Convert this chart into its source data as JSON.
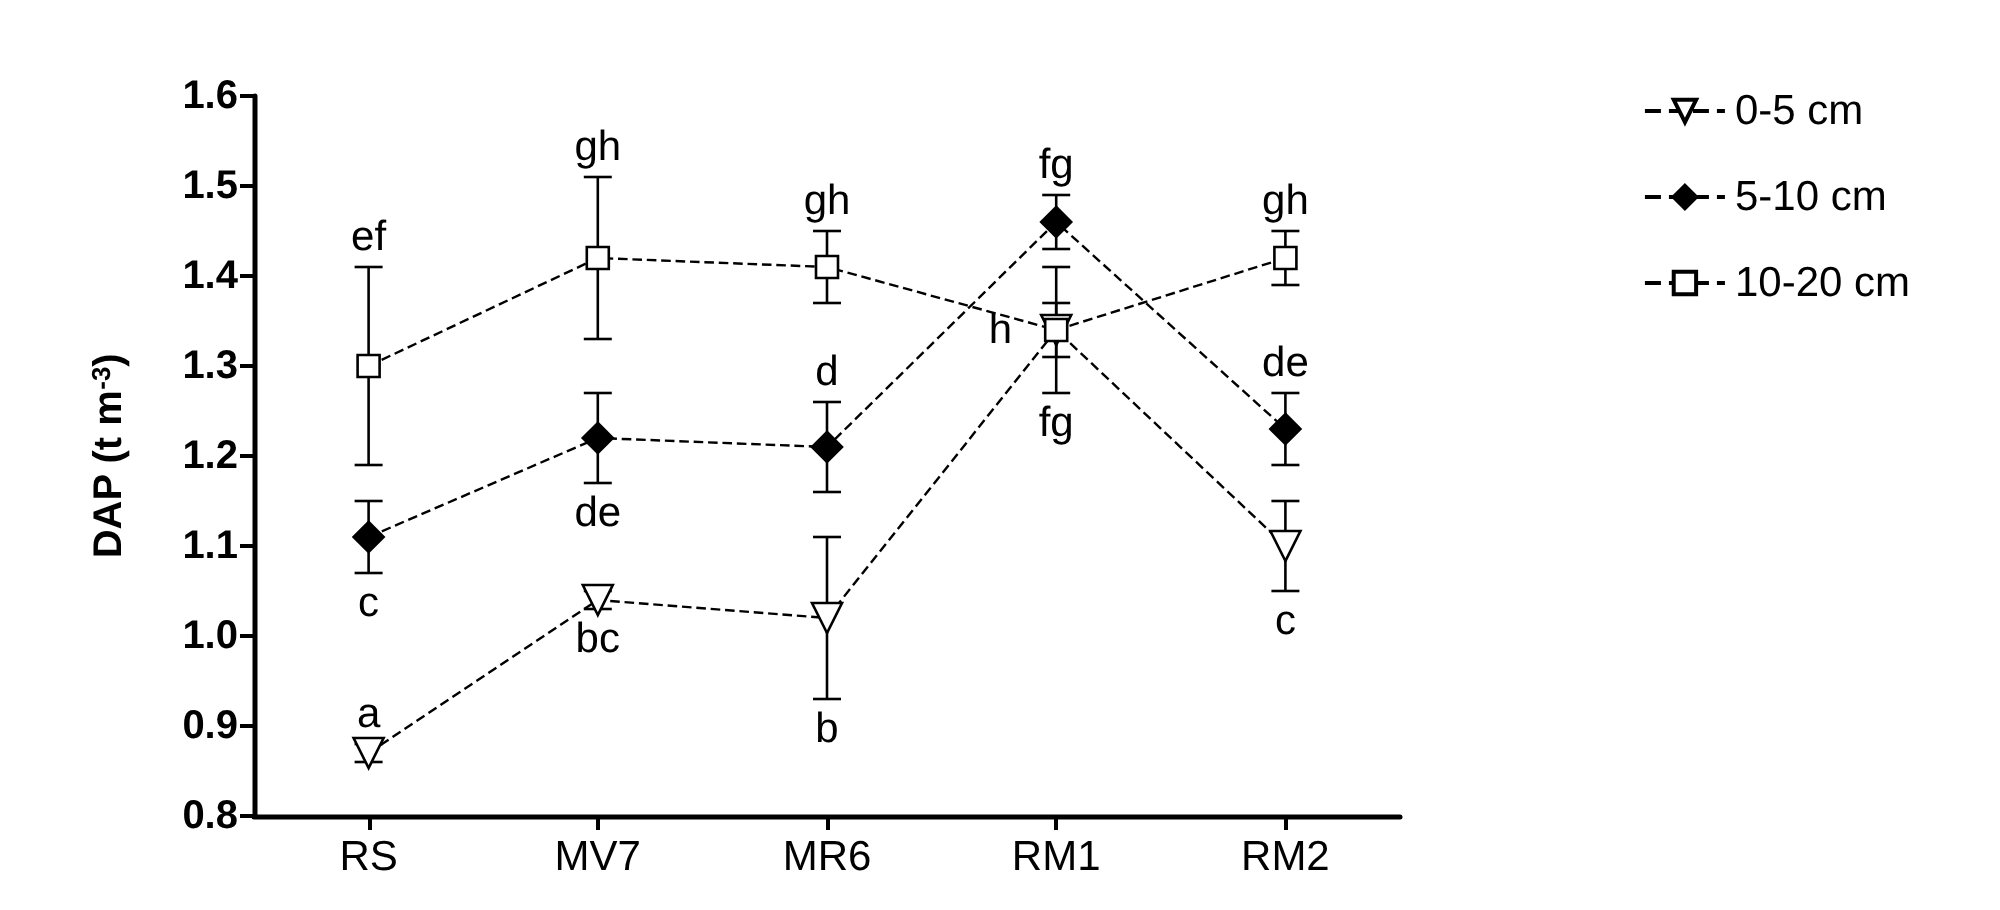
{
  "chart_data": {
    "type": "line",
    "ylabel": "DAP (t m$^{-3}$)",
    "categories": [
      "RS",
      "MV7",
      "MR6",
      "RM1",
      "RM2"
    ],
    "series": [
      {
        "name": "0-5 cm",
        "color": "#000000",
        "marker": "triangle",
        "values": [
          0.87,
          1.04,
          1.02,
          1.34,
          1.1
        ],
        "errors": [
          0.01,
          0.01,
          0.09,
          0.07,
          0.05
        ]
      },
      {
        "name": "5-10 cm",
        "color": "#000000",
        "marker": "diamond",
        "values": [
          1.11,
          1.22,
          1.21,
          1.46,
          1.23
        ],
        "errors": [
          0.04,
          0.05,
          0.05,
          0.03,
          0.04
        ]
      },
      {
        "name": "10-20 cm",
        "color": "#000000",
        "marker": "square",
        "values": [
          1.3,
          1.42,
          1.41,
          1.34,
          1.42
        ],
        "errors": [
          0.11,
          0.09,
          0.04,
          0.03,
          0.03
        ]
      }
    ],
    "ylim": [
      0.8,
      1.6
    ],
    "yticks": [
      0.8,
      0.9,
      {
        "value": 1,
        "label": "1.0"
      },
      1.1,
      1.2,
      1.3,
      1.4,
      1.5,
      1.6
    ],
    "line_style": "dashed",
    "grid": false,
    "legend": "right",
    "annotations": [
      {
        "text": "a",
        "x": "RS",
        "y": 0.88
      },
      {
        "text": "bc",
        "x": "MV7",
        "y": 1.03
      },
      {
        "text": "b",
        "x": "MR6",
        "y": 0.93
      },
      {
        "text": "fg",
        "x": "RM1",
        "y": 1.27
      },
      {
        "text": "c",
        "x": "RM2",
        "y": 1.05
      },
      {
        "text": "c",
        "x": "RS",
        "y": 1.07
      },
      {
        "text": "de",
        "x": "MV7",
        "y": 1.17
      },
      {
        "text": "d",
        "x": "MR6",
        "y": 1.26
      },
      {
        "text": "fg",
        "x": "RM1",
        "y": 1.49
      },
      {
        "text": "de",
        "x": "RM2",
        "y": 1.27
      },
      {
        "text": "ef",
        "x": "RS",
        "y": 1.41
      },
      {
        "text": "gh",
        "x": "MV7",
        "y": 1.51
      },
      {
        "text": "gh",
        "x": "MR6",
        "y": 1.45
      },
      {
        "text": "h",
        "x": "RM1",
        "y": 1.34
      },
      {
        "text": "gh",
        "x": "RM2",
        "y": 1.45
      }
    ]
  }
}
